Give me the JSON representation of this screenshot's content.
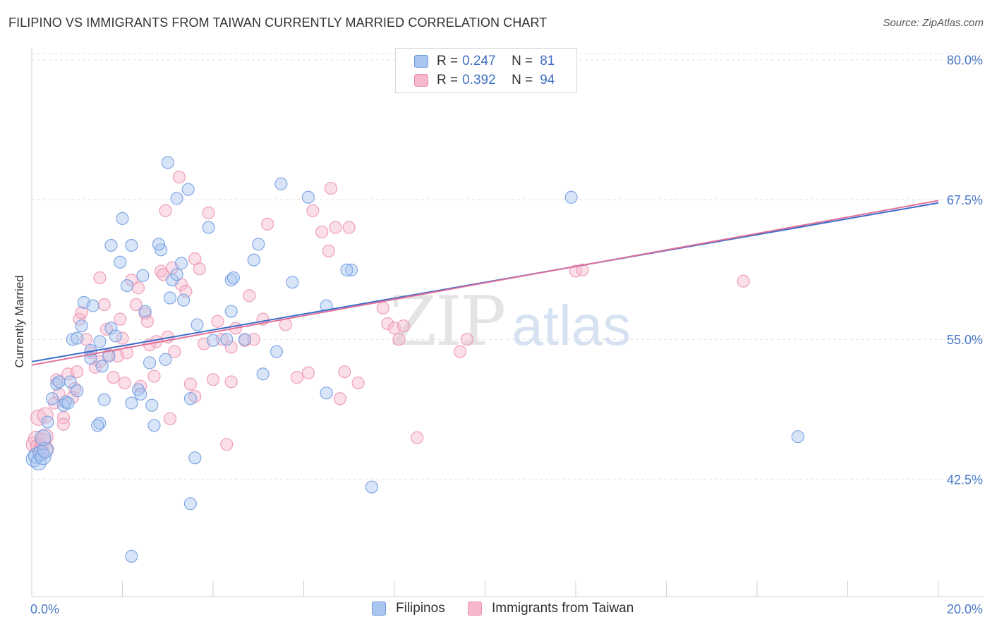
{
  "header": {
    "title": "FILIPINO VS IMMIGRANTS FROM TAIWAN CURRENTLY MARRIED CORRELATION CHART",
    "source": "Source: ZipAtlas.com"
  },
  "watermark": {
    "zip": "ZIP",
    "atlas": "atlas"
  },
  "legend": {
    "r_label": "R =",
    "n_label": "N =",
    "rows": [
      {
        "r": "0.247",
        "n": "81"
      },
      {
        "r": "0.392",
        "n": "94"
      }
    ]
  },
  "chart_data": {
    "type": "scatter",
    "title": "FILIPINO VS IMMIGRANTS FROM TAIWAN CURRENTLY MARRIED CORRELATION CHART",
    "xlabel": "",
    "ylabel": "Currently Married",
    "xlim": [
      0,
      20
    ],
    "ylim": [
      32,
      80.8
    ],
    "x_tick_labels": [
      "0.0%",
      "20.0%"
    ],
    "y_ticks": [
      42.5,
      55.0,
      67.5,
      80.0
    ],
    "y_tick_labels": [
      "42.5%",
      "55.0%",
      "67.5%",
      "80.0%"
    ],
    "grid": true,
    "legend_placement": "bottom",
    "colors": {
      "filipinos_fill": "#a9c6f0",
      "filipinos_stroke": "#6f9be0",
      "filipinos_line": "#3a6cc9",
      "taiwan_fill": "#f6b8cc",
      "taiwan_stroke": "#ec90ae",
      "taiwan_line": "#e0709a"
    },
    "series": [
      {
        "name": "Filipinos",
        "trend": {
          "x": [
            0,
            20
          ],
          "y": [
            53.0,
            67.2
          ]
        },
        "points": [
          [
            0.05,
            44.3
          ],
          [
            0.1,
            44.6
          ],
          [
            0.15,
            44.0
          ],
          [
            0.2,
            44.8
          ],
          [
            0.25,
            44.5
          ],
          [
            0.3,
            45.1
          ],
          [
            0.25,
            46.2
          ],
          [
            0.35,
            47.6
          ],
          [
            0.45,
            49.7
          ],
          [
            0.55,
            51.0
          ],
          [
            0.6,
            51.2
          ],
          [
            0.7,
            49.1
          ],
          [
            0.75,
            49.4
          ],
          [
            0.8,
            49.3
          ],
          [
            0.85,
            51.2
          ],
          [
            1.0,
            50.4
          ],
          [
            0.9,
            55.0
          ],
          [
            1.0,
            55.1
          ],
          [
            1.1,
            56.2
          ],
          [
            1.15,
            58.3
          ],
          [
            1.35,
            58.0
          ],
          [
            1.3,
            54.0
          ],
          [
            1.3,
            53.3
          ],
          [
            1.5,
            54.8
          ],
          [
            1.55,
            52.6
          ],
          [
            1.5,
            47.5
          ],
          [
            1.45,
            47.3
          ],
          [
            1.6,
            49.6
          ],
          [
            1.7,
            53.5
          ],
          [
            1.75,
            56.0
          ],
          [
            1.85,
            55.3
          ],
          [
            2.0,
            65.8
          ],
          [
            1.75,
            63.4
          ],
          [
            1.95,
            61.9
          ],
          [
            2.2,
            63.4
          ],
          [
            2.1,
            59.8
          ],
          [
            2.45,
            60.7
          ],
          [
            2.5,
            57.5
          ],
          [
            2.2,
            49.3
          ],
          [
            2.35,
            50.5
          ],
          [
            2.4,
            50.1
          ],
          [
            2.6,
            52.9
          ],
          [
            2.65,
            49.1
          ],
          [
            2.7,
            47.3
          ],
          [
            2.85,
            63.0
          ],
          [
            2.8,
            63.5
          ],
          [
            2.95,
            53.2
          ],
          [
            3.05,
            58.7
          ],
          [
            3.1,
            60.3
          ],
          [
            3.2,
            60.8
          ],
          [
            3.3,
            61.8
          ],
          [
            3.35,
            58.5
          ],
          [
            3.5,
            49.7
          ],
          [
            3.0,
            70.8
          ],
          [
            3.2,
            67.6
          ],
          [
            3.45,
            68.4
          ],
          [
            3.65,
            56.3
          ],
          [
            3.6,
            44.4
          ],
          [
            3.5,
            40.3
          ],
          [
            3.9,
            65.0
          ],
          [
            4.0,
            54.9
          ],
          [
            4.3,
            55.0
          ],
          [
            4.4,
            60.3
          ],
          [
            4.45,
            60.5
          ],
          [
            4.4,
            57.5
          ],
          [
            4.7,
            55.0
          ],
          [
            4.9,
            62.1
          ],
          [
            5.0,
            63.5
          ],
          [
            5.1,
            51.9
          ],
          [
            5.4,
            53.9
          ],
          [
            5.5,
            68.9
          ],
          [
            5.75,
            60.1
          ],
          [
            6.1,
            67.7
          ],
          [
            6.5,
            50.2
          ],
          [
            6.5,
            58.0
          ],
          [
            7.05,
            61.2
          ],
          [
            6.95,
            61.2
          ],
          [
            7.5,
            41.8
          ],
          [
            11.9,
            67.7
          ],
          [
            16.9,
            46.3
          ],
          [
            2.2,
            35.6
          ]
        ]
      },
      {
        "name": "Immigrants from Taiwan",
        "trend": {
          "x": [
            0,
            20
          ],
          "y": [
            52.7,
            67.4
          ]
        },
        "points": [
          [
            0.05,
            45.6
          ],
          [
            0.1,
            46.1
          ],
          [
            0.15,
            45.4
          ],
          [
            0.2,
            45.0
          ],
          [
            0.25,
            45.9
          ],
          [
            0.3,
            46.3
          ],
          [
            0.35,
            45.2
          ],
          [
            0.15,
            48.0
          ],
          [
            0.3,
            48.2
          ],
          [
            0.5,
            49.3
          ],
          [
            0.55,
            51.4
          ],
          [
            0.6,
            50.1
          ],
          [
            0.7,
            48.0
          ],
          [
            0.7,
            47.4
          ],
          [
            0.8,
            51.9
          ],
          [
            0.9,
            49.8
          ],
          [
            0.95,
            50.6
          ],
          [
            1.0,
            52.1
          ],
          [
            1.05,
            56.8
          ],
          [
            1.1,
            57.4
          ],
          [
            1.2,
            55.0
          ],
          [
            1.3,
            53.8
          ],
          [
            1.4,
            52.5
          ],
          [
            1.5,
            53.0
          ],
          [
            1.5,
            60.5
          ],
          [
            1.6,
            58.1
          ],
          [
            1.65,
            55.9
          ],
          [
            1.7,
            53.6
          ],
          [
            1.8,
            51.6
          ],
          [
            1.9,
            53.5
          ],
          [
            1.95,
            56.8
          ],
          [
            2.0,
            55.1
          ],
          [
            2.05,
            51.1
          ],
          [
            2.1,
            53.8
          ],
          [
            2.2,
            60.3
          ],
          [
            2.3,
            58.1
          ],
          [
            2.35,
            59.6
          ],
          [
            2.4,
            50.8
          ],
          [
            2.5,
            57.3
          ],
          [
            2.55,
            56.6
          ],
          [
            2.6,
            54.5
          ],
          [
            2.7,
            51.7
          ],
          [
            2.75,
            54.8
          ],
          [
            2.85,
            61.1
          ],
          [
            2.9,
            60.8
          ],
          [
            2.95,
            66.5
          ],
          [
            3.0,
            55.2
          ],
          [
            3.05,
            47.9
          ],
          [
            3.1,
            61.4
          ],
          [
            3.15,
            53.9
          ],
          [
            3.25,
            69.5
          ],
          [
            3.3,
            59.9
          ],
          [
            3.4,
            59.3
          ],
          [
            3.5,
            51.0
          ],
          [
            3.6,
            49.9
          ],
          [
            3.6,
            62.2
          ],
          [
            3.7,
            61.3
          ],
          [
            3.8,
            54.6
          ],
          [
            3.9,
            66.3
          ],
          [
            4.0,
            51.4
          ],
          [
            4.1,
            56.6
          ],
          [
            4.2,
            55.0
          ],
          [
            4.3,
            45.6
          ],
          [
            4.4,
            54.3
          ],
          [
            4.4,
            51.2
          ],
          [
            4.5,
            56.0
          ],
          [
            4.7,
            54.9
          ],
          [
            4.8,
            58.9
          ],
          [
            4.9,
            55.0
          ],
          [
            5.1,
            56.8
          ],
          [
            5.2,
            65.3
          ],
          [
            5.6,
            56.3
          ],
          [
            5.85,
            51.6
          ],
          [
            6.1,
            52.0
          ],
          [
            6.2,
            66.5
          ],
          [
            6.4,
            64.6
          ],
          [
            6.55,
            62.9
          ],
          [
            6.6,
            68.5
          ],
          [
            6.7,
            65.0
          ],
          [
            6.8,
            49.7
          ],
          [
            6.9,
            52.1
          ],
          [
            7.0,
            65.0
          ],
          [
            7.2,
            51.1
          ],
          [
            7.75,
            57.8
          ],
          [
            7.85,
            56.4
          ],
          [
            8.0,
            56.0
          ],
          [
            8.1,
            55.0
          ],
          [
            8.2,
            56.2
          ],
          [
            8.5,
            46.2
          ],
          [
            9.45,
            53.9
          ],
          [
            9.6,
            55.0
          ],
          [
            12.0,
            61.1
          ],
          [
            12.15,
            61.2
          ],
          [
            15.7,
            60.2
          ]
        ]
      }
    ]
  },
  "bottom_legend": {
    "items": [
      "Filipinos",
      "Immigrants from Taiwan"
    ]
  }
}
